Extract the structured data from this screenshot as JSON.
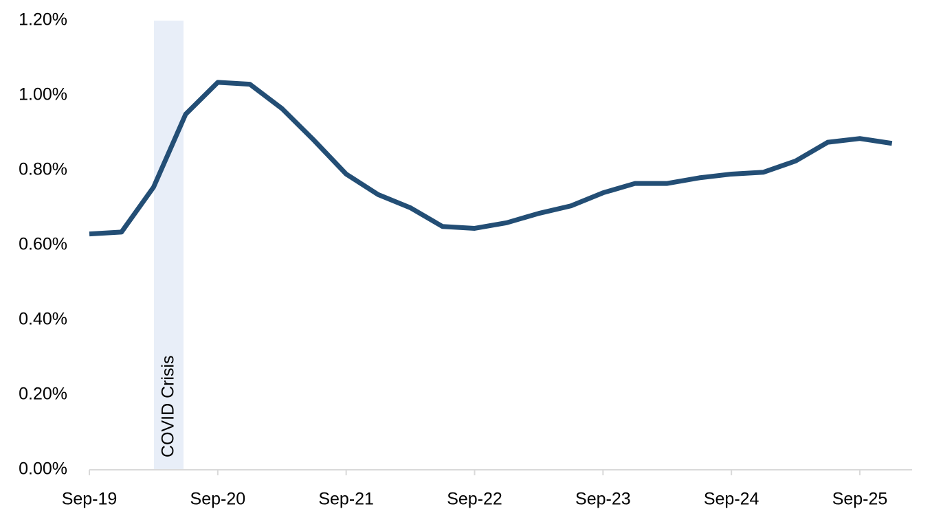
{
  "chart_data": {
    "type": "line",
    "categories": [
      "Sep-19",
      null,
      null,
      null,
      "Sep-20",
      null,
      null,
      null,
      "Sep-21",
      null,
      null,
      null,
      "Sep-22",
      null,
      null,
      null,
      "Sep-23",
      null,
      null,
      null,
      "Sep-24",
      null,
      null,
      null,
      "Sep-25",
      null
    ],
    "series": [
      {
        "color": "#234e75",
        "values": [
          0.63,
          0.635,
          0.755,
          0.95,
          1.035,
          1.03,
          0.965,
          0.88,
          0.79,
          0.735,
          0.7,
          0.65,
          0.645,
          0.66,
          0.685,
          0.705,
          0.74,
          0.765,
          0.765,
          0.78,
          0.79,
          0.795,
          0.825,
          0.875,
          0.885,
          0.872
        ]
      }
    ],
    "ylim": [
      0,
      1.2
    ],
    "yticks": [
      {
        "value": 0,
        "label": "0.00%"
      },
      {
        "value": 0.2,
        "label": "0.20%"
      },
      {
        "value": 0.4,
        "label": "0.40%"
      },
      {
        "value": 0.6,
        "label": "0.60%"
      },
      {
        "value": 0.8,
        "label": "0.80%"
      },
      {
        "value": 1.0,
        "label": "1.00%"
      },
      {
        "value": 1.2,
        "label": "1.20%"
      }
    ],
    "annotation": "COVID Crisis",
    "grid": false
  }
}
